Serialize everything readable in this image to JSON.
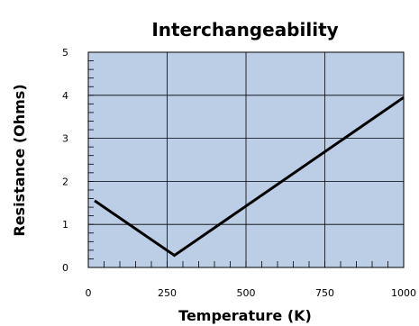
{
  "chart_data": {
    "type": "line",
    "title": "Interchangeability",
    "xlabel": "Temperature (K)",
    "ylabel": "Resistance (Ohms)",
    "xlim": [
      0,
      1000
    ],
    "ylim": [
      0,
      5
    ],
    "x_ticks": [
      0,
      250,
      500,
      750,
      1000
    ],
    "y_ticks": [
      0,
      1,
      2,
      3,
      4,
      5
    ],
    "x_tick_labels": [
      "0",
      "250",
      "500",
      "750",
      "1000"
    ],
    "y_tick_labels": [
      "0",
      "1",
      "2",
      "3",
      "4",
      "5"
    ],
    "grid": true,
    "plot_background": "#bccde6",
    "line_color": "#000000",
    "series": [
      {
        "x": [
          20,
          273,
          1000
        ],
        "y": [
          1.55,
          0.28,
          3.95
        ]
      }
    ]
  }
}
